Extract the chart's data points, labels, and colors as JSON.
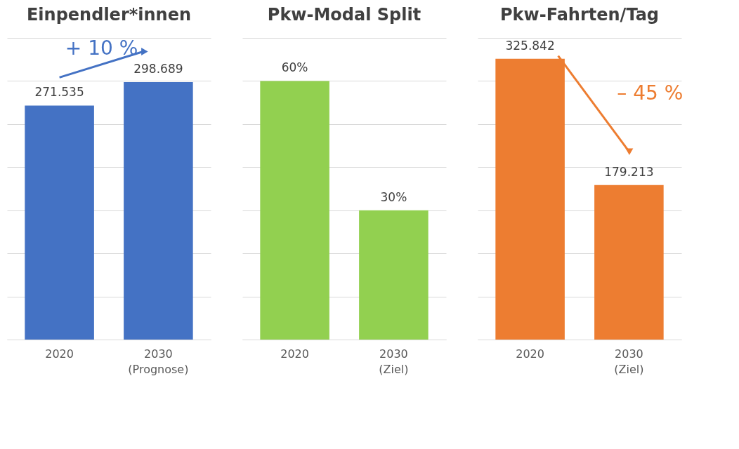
{
  "chart_data": [
    {
      "type": "bar",
      "title": "Einpendler*innen",
      "categories": [
        "2020",
        "2030\n(Prognose)"
      ],
      "values": [
        271535,
        298689
      ],
      "value_labels": [
        "271.535",
        "298.689"
      ],
      "color": "#4472c4",
      "ylim": [
        0,
        350000
      ],
      "yticks": [
        0,
        50000,
        100000,
        150000,
        200000,
        250000,
        300000,
        350000
      ],
      "grid": "y",
      "tick_labels": "x",
      "annotations": [
        "+ 10 %"
      ]
    },
    {
      "type": "bar",
      "title": "Pkw-Modal  Split",
      "categories": [
        "2020",
        "2030\n(Ziel)"
      ],
      "values": [
        60,
        30
      ],
      "value_labels": [
        "60%",
        "30%"
      ],
      "color": "#92d050",
      "ylim": [
        0,
        70
      ],
      "yticks": [
        0,
        10,
        20,
        30,
        40,
        50,
        60,
        70
      ],
      "grid": "y",
      "tick_labels": "x"
    },
    {
      "type": "bar",
      "title": "Pkw-Fahrten/Tag",
      "categories": [
        "2020",
        "2030\n(Ziel)"
      ],
      "values": [
        325842,
        179213
      ],
      "value_labels": [
        "325.842",
        "179.213"
      ],
      "color": "#ed7d31",
      "ylim": [
        0,
        350000
      ],
      "yticks": [
        0,
        50000,
        100000,
        150000,
        200000,
        250000,
        300000,
        350000
      ],
      "grid": "y",
      "tick_labels": "x",
      "annotations": [
        "– 45 %"
      ]
    }
  ]
}
